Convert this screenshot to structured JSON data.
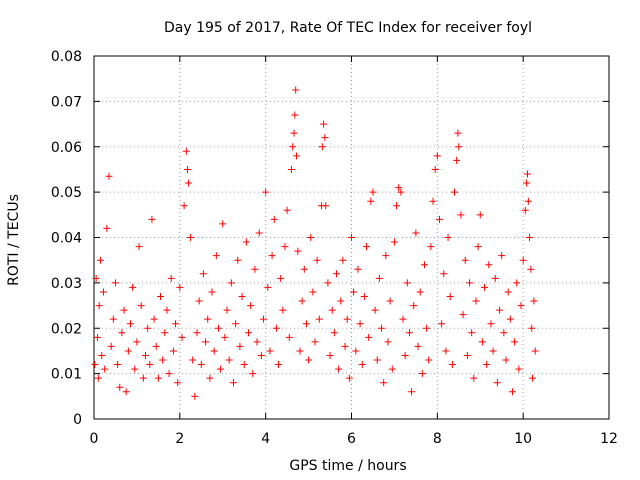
{
  "chart_data": {
    "type": "scatter",
    "title": "Day 195 of 2017, Rate Of TEC Index for receiver foyl",
    "xlabel": "GPS time / hours",
    "ylabel": "ROTI / TECUs",
    "xlim": [
      0,
      12
    ],
    "ylim": [
      0,
      0.08
    ],
    "x_ticks": [
      0,
      2,
      4,
      6,
      8,
      10,
      12
    ],
    "y_ticks": [
      0,
      0.01,
      0.02,
      0.03,
      0.04,
      0.05,
      0.06,
      0.07,
      0.08
    ],
    "x_tick_labels": [
      "0",
      "2",
      "4",
      "6",
      "8",
      "10",
      "12"
    ],
    "y_tick_labels": [
      "0",
      "0.01",
      "0.02",
      "0.03",
      "0.04",
      "0.05",
      "0.06",
      "0.07",
      "0.08"
    ],
    "grid": true,
    "marker": "+",
    "marker_color": "#ff0000",
    "series": [
      {
        "name": "ROTI",
        "points": [
          [
            0.02,
            0.012
          ],
          [
            0.05,
            0.031
          ],
          [
            0.08,
            0.018
          ],
          [
            0.1,
            0.009
          ],
          [
            0.12,
            0.025
          ],
          [
            0.15,
            0.035
          ],
          [
            0.18,
            0.014
          ],
          [
            0.22,
            0.028
          ],
          [
            0.25,
            0.011
          ],
          [
            0.3,
            0.042
          ],
          [
            0.35,
            0.0535
          ],
          [
            0.4,
            0.016
          ],
          [
            0.45,
            0.022
          ],
          [
            0.5,
            0.03
          ],
          [
            0.55,
            0.012
          ],
          [
            0.6,
            0.007
          ],
          [
            0.65,
            0.019
          ],
          [
            0.7,
            0.024
          ],
          [
            0.75,
            0.006
          ],
          [
            0.8,
            0.015
          ],
          [
            0.85,
            0.021
          ],
          [
            0.9,
            0.029
          ],
          [
            0.95,
            0.011
          ],
          [
            1.0,
            0.017
          ],
          [
            1.05,
            0.038
          ],
          [
            1.1,
            0.025
          ],
          [
            1.15,
            0.009
          ],
          [
            1.2,
            0.014
          ],
          [
            1.25,
            0.02
          ],
          [
            1.3,
            0.012
          ],
          [
            1.35,
            0.044
          ],
          [
            1.4,
            0.022
          ],
          [
            1.45,
            0.016
          ],
          [
            1.5,
            0.009
          ],
          [
            1.55,
            0.027
          ],
          [
            1.6,
            0.013
          ],
          [
            1.65,
            0.019
          ],
          [
            1.7,
            0.024
          ],
          [
            1.75,
            0.01
          ],
          [
            1.8,
            0.031
          ],
          [
            1.85,
            0.015
          ],
          [
            1.9,
            0.021
          ],
          [
            1.95,
            0.008
          ],
          [
            2.0,
            0.029
          ],
          [
            2.05,
            0.018
          ],
          [
            2.1,
            0.047
          ],
          [
            2.15,
            0.059
          ],
          [
            2.18,
            0.055
          ],
          [
            2.2,
            0.052
          ],
          [
            2.25,
            0.04
          ],
          [
            2.3,
            0.013
          ],
          [
            2.35,
            0.005
          ],
          [
            2.4,
            0.019
          ],
          [
            2.45,
            0.026
          ],
          [
            2.5,
            0.012
          ],
          [
            2.55,
            0.032
          ],
          [
            2.6,
            0.017
          ],
          [
            2.65,
            0.022
          ],
          [
            2.7,
            0.009
          ],
          [
            2.75,
            0.028
          ],
          [
            2.8,
            0.015
          ],
          [
            2.85,
            0.036
          ],
          [
            2.9,
            0.02
          ],
          [
            2.95,
            0.011
          ],
          [
            3.0,
            0.043
          ],
          [
            3.05,
            0.018
          ],
          [
            3.1,
            0.024
          ],
          [
            3.15,
            0.013
          ],
          [
            3.2,
            0.03
          ],
          [
            3.25,
            0.008
          ],
          [
            3.3,
            0.021
          ],
          [
            3.35,
            0.035
          ],
          [
            3.4,
            0.016
          ],
          [
            3.45,
            0.027
          ],
          [
            3.5,
            0.012
          ],
          [
            3.55,
            0.039
          ],
          [
            3.6,
            0.019
          ],
          [
            3.65,
            0.025
          ],
          [
            3.7,
            0.01
          ],
          [
            3.75,
            0.033
          ],
          [
            3.8,
            0.017
          ],
          [
            3.85,
            0.041
          ],
          [
            3.9,
            0.014
          ],
          [
            3.95,
            0.022
          ],
          [
            4.0,
            0.05
          ],
          [
            4.05,
            0.029
          ],
          [
            4.1,
            0.015
          ],
          [
            4.15,
            0.036
          ],
          [
            4.2,
            0.044
          ],
          [
            4.25,
            0.02
          ],
          [
            4.3,
            0.012
          ],
          [
            4.35,
            0.031
          ],
          [
            4.4,
            0.024
          ],
          [
            4.45,
            0.038
          ],
          [
            4.5,
            0.046
          ],
          [
            4.55,
            0.018
          ],
          [
            4.6,
            0.055
          ],
          [
            4.63,
            0.06
          ],
          [
            4.66,
            0.063
          ],
          [
            4.68,
            0.067
          ],
          [
            4.7,
            0.0725
          ],
          [
            4.72,
            0.058
          ],
          [
            4.75,
            0.037
          ],
          [
            4.8,
            0.015
          ],
          [
            4.85,
            0.026
          ],
          [
            4.9,
            0.033
          ],
          [
            4.95,
            0.021
          ],
          [
            5.0,
            0.013
          ],
          [
            5.05,
            0.04
          ],
          [
            5.1,
            0.028
          ],
          [
            5.15,
            0.017
          ],
          [
            5.2,
            0.035
          ],
          [
            5.25,
            0.022
          ],
          [
            5.3,
            0.047
          ],
          [
            5.32,
            0.06
          ],
          [
            5.35,
            0.065
          ],
          [
            5.38,
            0.062
          ],
          [
            5.4,
            0.047
          ],
          [
            5.45,
            0.03
          ],
          [
            5.5,
            0.014
          ],
          [
            5.55,
            0.024
          ],
          [
            5.6,
            0.019
          ],
          [
            5.65,
            0.032
          ],
          [
            5.7,
            0.011
          ],
          [
            5.75,
            0.026
          ],
          [
            5.8,
            0.035
          ],
          [
            5.85,
            0.016
          ],
          [
            5.9,
            0.022
          ],
          [
            5.95,
            0.009
          ],
          [
            6.0,
            0.04
          ],
          [
            6.05,
            0.028
          ],
          [
            6.1,
            0.015
          ],
          [
            6.15,
            0.033
          ],
          [
            6.2,
            0.021
          ],
          [
            6.25,
            0.012
          ],
          [
            6.3,
            0.027
          ],
          [
            6.35,
            0.038
          ],
          [
            6.4,
            0.018
          ],
          [
            6.45,
            0.048
          ],
          [
            6.5,
            0.05
          ],
          [
            6.55,
            0.024
          ],
          [
            6.6,
            0.013
          ],
          [
            6.65,
            0.031
          ],
          [
            6.7,
            0.02
          ],
          [
            6.75,
            0.008
          ],
          [
            6.8,
            0.036
          ],
          [
            6.85,
            0.017
          ],
          [
            6.9,
            0.026
          ],
          [
            6.95,
            0.011
          ],
          [
            7.0,
            0.039
          ],
          [
            7.05,
            0.047
          ],
          [
            7.1,
            0.051
          ],
          [
            7.15,
            0.05
          ],
          [
            7.2,
            0.022
          ],
          [
            7.25,
            0.014
          ],
          [
            7.3,
            0.03
          ],
          [
            7.35,
            0.019
          ],
          [
            7.4,
            0.006
          ],
          [
            7.45,
            0.025
          ],
          [
            7.5,
            0.041
          ],
          [
            7.55,
            0.016
          ],
          [
            7.6,
            0.028
          ],
          [
            7.65,
            0.01
          ],
          [
            7.7,
            0.034
          ],
          [
            7.75,
            0.02
          ],
          [
            7.8,
            0.013
          ],
          [
            7.85,
            0.038
          ],
          [
            7.9,
            0.048
          ],
          [
            7.95,
            0.055
          ],
          [
            8.0,
            0.058
          ],
          [
            8.05,
            0.044
          ],
          [
            8.1,
            0.021
          ],
          [
            8.15,
            0.032
          ],
          [
            8.2,
            0.015
          ],
          [
            8.25,
            0.04
          ],
          [
            8.3,
            0.027
          ],
          [
            8.35,
            0.012
          ],
          [
            8.4,
            0.05
          ],
          [
            8.45,
            0.057
          ],
          [
            8.48,
            0.063
          ],
          [
            8.5,
            0.06
          ],
          [
            8.55,
            0.045
          ],
          [
            8.6,
            0.023
          ],
          [
            8.65,
            0.035
          ],
          [
            8.7,
            0.014
          ],
          [
            8.75,
            0.03
          ],
          [
            8.8,
            0.019
          ],
          [
            8.85,
            0.009
          ],
          [
            8.9,
            0.026
          ],
          [
            8.95,
            0.038
          ],
          [
            9.0,
            0.045
          ],
          [
            9.05,
            0.017
          ],
          [
            9.1,
            0.029
          ],
          [
            9.15,
            0.012
          ],
          [
            9.2,
            0.034
          ],
          [
            9.25,
            0.021
          ],
          [
            9.3,
            0.015
          ],
          [
            9.35,
            0.031
          ],
          [
            9.4,
            0.008
          ],
          [
            9.45,
            0.024
          ],
          [
            9.5,
            0.036
          ],
          [
            9.55,
            0.019
          ],
          [
            9.6,
            0.013
          ],
          [
            9.65,
            0.028
          ],
          [
            9.7,
            0.022
          ],
          [
            9.75,
            0.006
          ],
          [
            9.8,
            0.017
          ],
          [
            9.85,
            0.03
          ],
          [
            9.9,
            0.011
          ],
          [
            9.95,
            0.025
          ],
          [
            10.0,
            0.035
          ],
          [
            10.05,
            0.046
          ],
          [
            10.08,
            0.052
          ],
          [
            10.1,
            0.054
          ],
          [
            10.12,
            0.048
          ],
          [
            10.15,
            0.04
          ],
          [
            10.18,
            0.033
          ],
          [
            10.2,
            0.02
          ],
          [
            10.22,
            0.009
          ],
          [
            10.25,
            0.026
          ],
          [
            10.28,
            0.015
          ]
        ]
      }
    ]
  }
}
